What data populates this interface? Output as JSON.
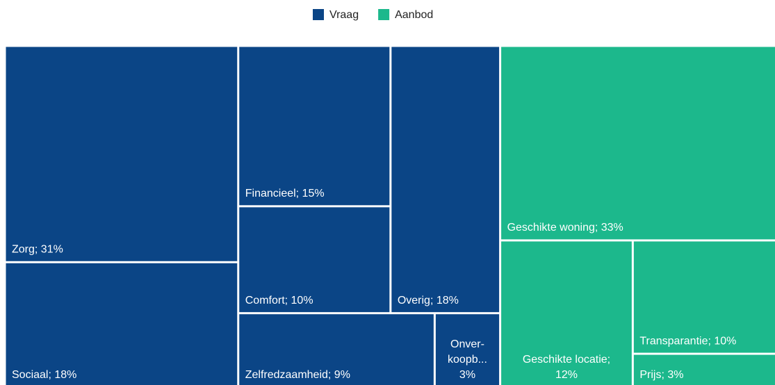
{
  "chart_data": {
    "type": "treemap",
    "series": [
      {
        "name": "Vraag",
        "color": "#0b4586",
        "values": [
          31,
          18,
          15,
          10,
          18,
          9,
          3
        ],
        "value_labels": [
          [
            "Zorg; 31%"
          ],
          [
            "Sociaal; 18%"
          ],
          [
            "Financieel; 15%"
          ],
          [
            "Comfort; 10%"
          ],
          [
            "Overig; 18%"
          ],
          [
            "Zelfredzaamheid; 9%"
          ],
          [
            "Onver-",
            "koopb...",
            "3%"
          ]
        ]
      },
      {
        "name": "Aanbod",
        "color": "#1cb88c",
        "values": [
          33,
          12,
          10,
          3
        ],
        "value_labels": [
          [
            "Geschikte woning; 33%"
          ],
          [
            "Geschikte locatie;",
            "12%"
          ],
          [
            "Transparantie; 10%"
          ],
          [
            "Prijs; 3%"
          ]
        ]
      }
    ],
    "legend": "top"
  }
}
